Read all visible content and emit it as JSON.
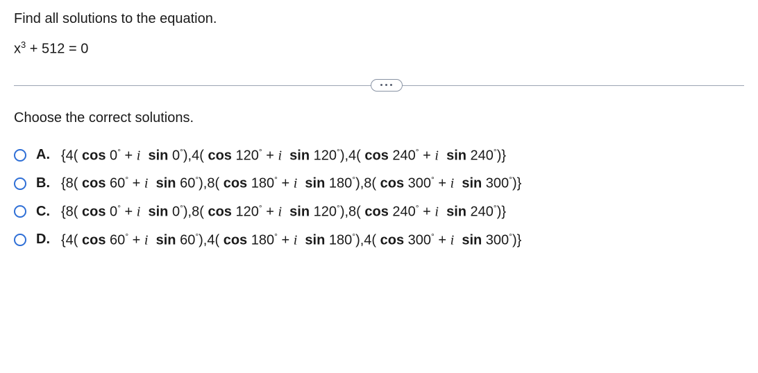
{
  "question": "Find all solutions to the equation.",
  "equation_html": "x<sup>3</sup> + 512 = 0",
  "prompt": "Choose the correct solutions.",
  "options": [
    {
      "label": "A.",
      "content_html": "{4( <b>cos</b> 0<span class='deg'>°</span> + <i>i</i>&nbsp; <b>sin</b> 0<span class='deg'>°</span>),4( <b>cos</b> 120<span class='deg'>°</span> + <i>i</i>&nbsp; <b>sin</b> 120<span class='deg'>°</span>),4( <b>cos</b> 240<span class='deg'>°</span> + <i>i</i>&nbsp; <b>sin</b> 240<span class='deg'>°</span>)}"
    },
    {
      "label": "B.",
      "content_html": "{8( <b>cos</b> 60<span class='deg'>°</span> + <i>i</i>&nbsp; <b>sin</b> 60<span class='deg'>°</span>),8( <b>cos</b> 180<span class='deg'>°</span> + <i>i</i>&nbsp; <b>sin</b> 180<span class='deg'>°</span>),8( <b>cos</b> 300<span class='deg'>°</span> + <i>i</i>&nbsp; <b>sin</b> 300<span class='deg'>°</span>)}"
    },
    {
      "label": "C.",
      "content_html": "{8( <b>cos</b> 0<span class='deg'>°</span> + <i>i</i>&nbsp; <b>sin</b> 0<span class='deg'>°</span>),8( <b>cos</b> 120<span class='deg'>°</span> + <i>i</i>&nbsp; <b>sin</b> 120<span class='deg'>°</span>),8( <b>cos</b> 240<span class='deg'>°</span> + <i>i</i>&nbsp; <b>sin</b> 240<span class='deg'>°</span>)}"
    },
    {
      "label": "D.",
      "content_html": "{4( <b>cos</b> 60<span class='deg'>°</span> + <i>i</i>&nbsp; <b>sin</b> 60<span class='deg'>°</span>),4( <b>cos</b> 180<span class='deg'>°</span> + <i>i</i>&nbsp; <b>sin</b> 180<span class='deg'>°</span>),4( <b>cos</b> 300<span class='deg'>°</span> + <i>i</i>&nbsp; <b>sin</b> 300<span class='deg'>°</span>)}"
    }
  ],
  "colors": {
    "radio_border": "#2f6fd6",
    "divider": "#9aa4b2",
    "text": "#1a1a1a",
    "background": "#ffffff"
  }
}
